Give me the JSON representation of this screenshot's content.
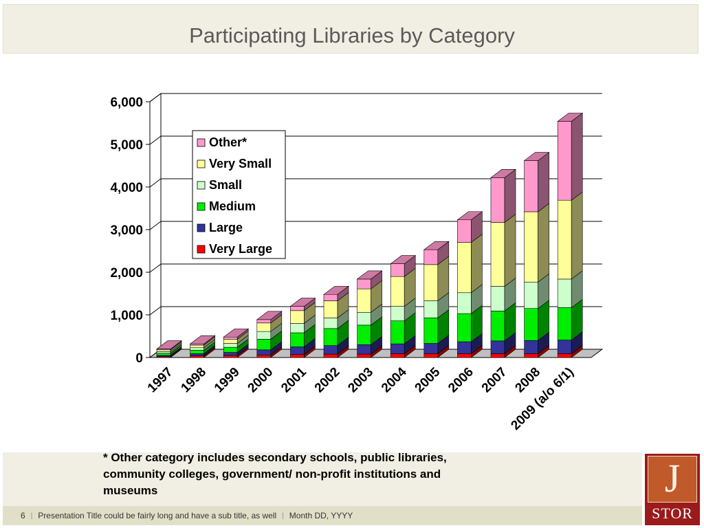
{
  "slide": {
    "title": "Participating Libraries by Category",
    "footnote": "* Other category includes secondary schools, public libraries, community colleges, government/ non-profit institutions and museums",
    "footer": {
      "page_number": "6",
      "presentation_title": "Presentation Title could be fairly long and have a sub title, as well",
      "date": "Month DD, YYYY"
    },
    "logo": {
      "letter": "J",
      "word": "STOR"
    }
  },
  "chart_data": {
    "type": "bar",
    "stacked": true,
    "three_d": true,
    "title": "",
    "xlabel": "",
    "ylabel": "",
    "ylim": [
      0,
      6000
    ],
    "y_ticks": [
      "0",
      "1,000",
      "2,000",
      "3,000",
      "4,000",
      "5,000",
      "6,000"
    ],
    "grid": true,
    "legend_position": "top-left, inside plot",
    "categories": [
      "1997",
      "1998",
      "1999",
      "2000",
      "2001",
      "2002",
      "2003",
      "2004",
      "2005",
      "2006",
      "2007",
      "2008",
      "2009 (a/o 6/1)"
    ],
    "series": [
      {
        "name": "Very Large",
        "color": "#ff0000",
        "values": [
          20,
          40,
          50,
          60,
          70,
          80,
          80,
          90,
          90,
          90,
          90,
          90,
          90
        ]
      },
      {
        "name": "Large",
        "color": "#333399",
        "values": [
          30,
          50,
          70,
          120,
          180,
          200,
          220,
          230,
          240,
          280,
          300,
          310,
          320
        ]
      },
      {
        "name": "Medium",
        "color": "#00ee00",
        "values": [
          50,
          80,
          120,
          250,
          330,
          400,
          460,
          540,
          600,
          660,
          700,
          750,
          760
        ]
      },
      {
        "name": "Small",
        "color": "#ccffcc",
        "values": [
          40,
          60,
          90,
          180,
          220,
          250,
          300,
          340,
          400,
          490,
          580,
          620,
          670
        ]
      },
      {
        "name": "Very Small",
        "color": "#ffff99",
        "values": [
          40,
          60,
          100,
          200,
          300,
          400,
          550,
          700,
          850,
          1180,
          1500,
          1650,
          1850
        ]
      },
      {
        "name": "Other*",
        "color": "#ff99cc",
        "values": [
          20,
          30,
          50,
          80,
          100,
          150,
          230,
          300,
          350,
          530,
          1050,
          1200,
          1850
        ]
      }
    ]
  }
}
